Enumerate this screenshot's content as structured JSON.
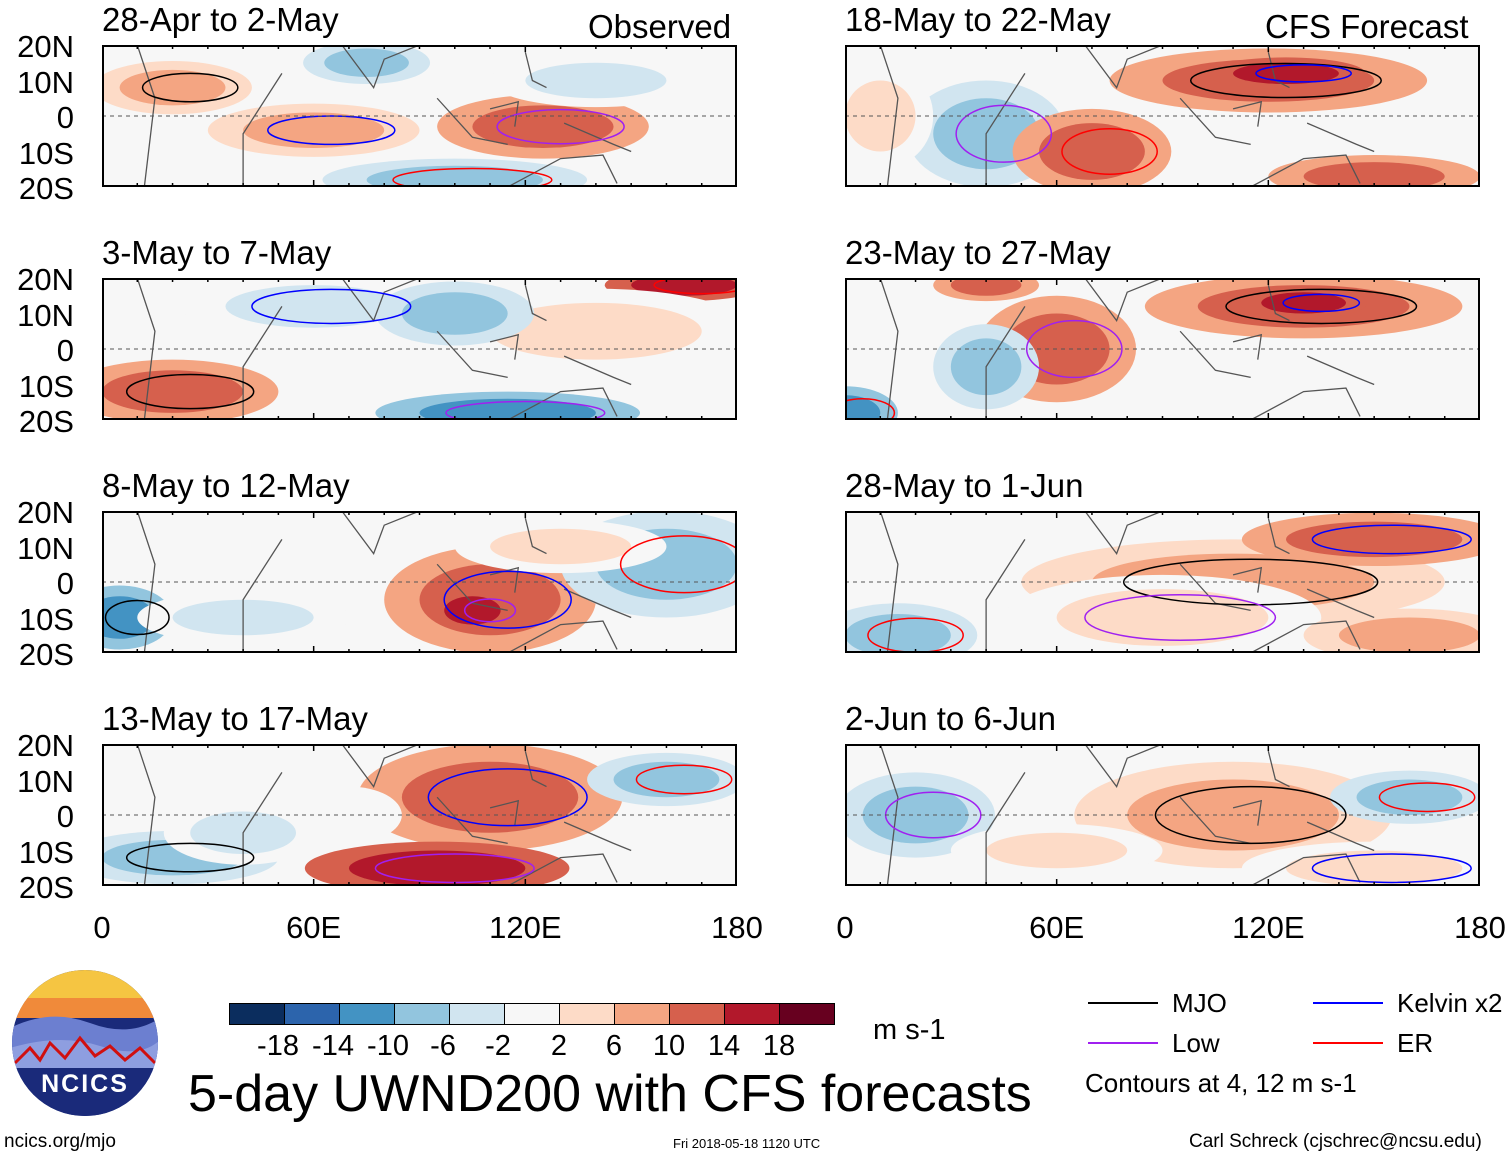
{
  "labels": {
    "observed": "Observed",
    "forecast": "CFS Forecast"
  },
  "panels": [
    {
      "title": "28-Apr to 2-May",
      "column": "observed"
    },
    {
      "title": "3-May to 7-May",
      "column": "observed"
    },
    {
      "title": "8-May to 12-May",
      "column": "observed"
    },
    {
      "title": "13-May to 17-May",
      "column": "observed"
    },
    {
      "title": "18-May to 22-May",
      "column": "forecast"
    },
    {
      "title": "23-May to 27-May",
      "column": "forecast"
    },
    {
      "title": "28-May to 1-Jun",
      "column": "forecast"
    },
    {
      "title": "2-Jun to 6-Jun",
      "column": "forecast"
    }
  ],
  "lat_ticks": [
    "20N",
    "10N",
    "0",
    "10S",
    "20S"
  ],
  "lon_ticks": [
    "0",
    "60E",
    "120E",
    "180"
  ],
  "colorbar": {
    "ticks": [
      "-18",
      "-14",
      "-10",
      "-6",
      "-2",
      "2",
      "6",
      "10",
      "14",
      "18"
    ],
    "colors": [
      "#0b2d5e",
      "#2c64ac",
      "#4393c3",
      "#92c5de",
      "#d1e5f0",
      "#f7f7f7",
      "#fddbc7",
      "#f4a582",
      "#d6604d",
      "#b2182b",
      "#67001f"
    ],
    "units": "m s-1"
  },
  "legend": {
    "items": [
      {
        "label": "MJO",
        "color": "#000000"
      },
      {
        "label": "Kelvin x2",
        "color": "#0000ff"
      },
      {
        "label": "Low",
        "color": "#a020f0"
      },
      {
        "label": "ER",
        "color": "#ff0000"
      }
    ],
    "note": "Contours at 4, 12 m s-1"
  },
  "title": "5-day UWND200 with CFS forecasts",
  "logo_text": "NCICS",
  "footer": {
    "left": "ncics.org/mjo",
    "center": "Fri 2018-05-18 1120 UTC",
    "right": "Carl Schreck (cjschrec@ncsu.edu)"
  }
}
